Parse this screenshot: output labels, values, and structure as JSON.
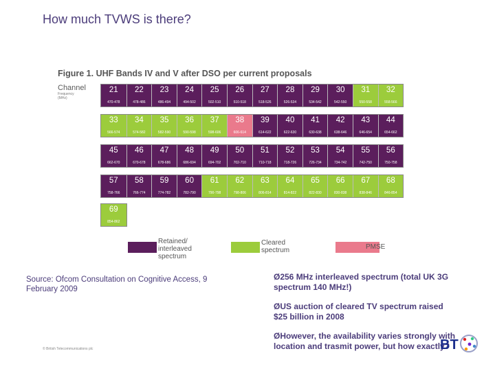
{
  "slide": {
    "title": "How much TVWS is there?",
    "source": "Source: Ofcom Consultation on  Cognitive Access, 9 February 2009",
    "bullets": [
      "Ø256 MHz interleaved  spectrum (total UK 3G spectrum 140 MHz!)",
      "ØUS auction of cleared TV spectrum raised $25 billion in 2008",
      "ØHowever, the availability varies strongly with  location and trasmit power, but how exactly?"
    ],
    "copyright": "© British Telecommunications plc",
    "logo_text": "BT"
  },
  "figure": {
    "title": "Figure 1. UHF Bands IV and V after DSO per current proposals",
    "channel_label": "Channel",
    "frequency_label": "Frequency",
    "frequency_unit": "(MHz)",
    "rows": [
      [
        {
          "ch": "21",
          "range": "470-478",
          "type": "retained"
        },
        {
          "ch": "22",
          "range": "478-486",
          "type": "retained"
        },
        {
          "ch": "23",
          "range": "486-494",
          "type": "retained"
        },
        {
          "ch": "24",
          "range": "494-502",
          "type": "retained"
        },
        {
          "ch": "25",
          "range": "502-510",
          "type": "retained"
        },
        {
          "ch": "26",
          "range": "510-518",
          "type": "retained"
        },
        {
          "ch": "27",
          "range": "518-526",
          "type": "retained"
        },
        {
          "ch": "28",
          "range": "526-534",
          "type": "retained"
        },
        {
          "ch": "29",
          "range": "534-542",
          "type": "retained"
        },
        {
          "ch": "30",
          "range": "542-550",
          "type": "retained"
        },
        {
          "ch": "31",
          "range": "550-558",
          "type": "cleared"
        },
        {
          "ch": "32",
          "range": "558-566",
          "type": "cleared"
        }
      ],
      [
        {
          "ch": "33",
          "range": "566-574",
          "type": "cleared"
        },
        {
          "ch": "34",
          "range": "574-582",
          "type": "cleared"
        },
        {
          "ch": "35",
          "range": "582-590",
          "type": "cleared"
        },
        {
          "ch": "36",
          "range": "590-598",
          "type": "cleared"
        },
        {
          "ch": "37",
          "range": "598-606",
          "type": "cleared"
        },
        {
          "ch": "38",
          "range": "606-614",
          "type": "pmse"
        },
        {
          "ch": "39",
          "range": "614-622",
          "type": "retained"
        },
        {
          "ch": "40",
          "range": "622-630",
          "type": "retained"
        },
        {
          "ch": "41",
          "range": "630-638",
          "type": "retained"
        },
        {
          "ch": "42",
          "range": "638-646",
          "type": "retained"
        },
        {
          "ch": "43",
          "range": "646-654",
          "type": "retained"
        },
        {
          "ch": "44",
          "range": "654-662",
          "type": "retained"
        }
      ],
      [
        {
          "ch": "45",
          "range": "662-670",
          "type": "retained"
        },
        {
          "ch": "46",
          "range": "670-678",
          "type": "retained"
        },
        {
          "ch": "47",
          "range": "678-686",
          "type": "retained"
        },
        {
          "ch": "48",
          "range": "686-694",
          "type": "retained"
        },
        {
          "ch": "49",
          "range": "694-702",
          "type": "retained"
        },
        {
          "ch": "50",
          "range": "702-710",
          "type": "retained"
        },
        {
          "ch": "51",
          "range": "710-718",
          "type": "retained"
        },
        {
          "ch": "52",
          "range": "718-726",
          "type": "retained"
        },
        {
          "ch": "53",
          "range": "726-734",
          "type": "retained"
        },
        {
          "ch": "54",
          "range": "734-742",
          "type": "retained"
        },
        {
          "ch": "55",
          "range": "742-750",
          "type": "retained"
        },
        {
          "ch": "56",
          "range": "750-758",
          "type": "retained"
        }
      ],
      [
        {
          "ch": "57",
          "range": "758-766",
          "type": "retained"
        },
        {
          "ch": "58",
          "range": "766-774",
          "type": "retained"
        },
        {
          "ch": "59",
          "range": "774-782",
          "type": "retained"
        },
        {
          "ch": "60",
          "range": "782-790",
          "type": "retained"
        },
        {
          "ch": "61",
          "range": "790-798",
          "type": "cleared"
        },
        {
          "ch": "62",
          "range": "798-806",
          "type": "cleared"
        },
        {
          "ch": "63",
          "range": "806-814",
          "type": "cleared"
        },
        {
          "ch": "64",
          "range": "814-822",
          "type": "cleared"
        },
        {
          "ch": "65",
          "range": "822-830",
          "type": "cleared"
        },
        {
          "ch": "66",
          "range": "830-838",
          "type": "cleared"
        },
        {
          "ch": "67",
          "range": "838-846",
          "type": "cleared"
        },
        {
          "ch": "68",
          "range": "846-854",
          "type": "cleared"
        }
      ],
      [
        {
          "ch": "69",
          "range": "854-862",
          "type": "cleared"
        }
      ]
    ],
    "legend": [
      {
        "label": "Retained/ interleaved spectrum",
        "color": "#5b1e5c"
      },
      {
        "label": "Cleared spectrum",
        "color": "#9ccc3c"
      },
      {
        "label": "PMSE",
        "color": "#ea7a8c"
      }
    ]
  },
  "colors": {
    "title": "#4b3c7a",
    "retained": "#5b1e5c",
    "cleared": "#9ccc3c",
    "pmse": "#ea7a8c",
    "bt_blue": "#1a2d8c"
  }
}
